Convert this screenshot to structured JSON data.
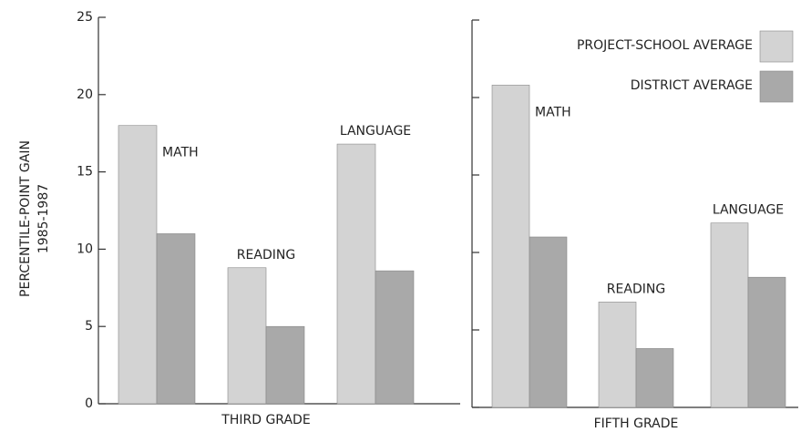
{
  "chart_data": [
    {
      "type": "bar",
      "y_label": [
        "PERCENTILE-POINT  GAIN",
        "1985-1987"
      ],
      "x_label": "THIRD GRADE",
      "categories": [
        "MATH",
        "READING",
        "LANGUAGE"
      ],
      "series": [
        {
          "color": "#d3d3d3",
          "values": [
            18,
            8.8,
            16.8
          ]
        },
        {
          "color": "#a9a9a9",
          "values": [
            11,
            5,
            8.6
          ]
        }
      ],
      "ylim": [
        0,
        25
      ],
      "yticks": [
        0,
        5,
        10,
        15,
        20,
        25
      ],
      "tick_labels": true
    },
    {
      "type": "bar",
      "x_label": "FIFTH GRADE",
      "categories": [
        "MATH",
        "READING",
        "LANGUAGE"
      ],
      "series": [
        {
          "name": "PROJECT-SCHOOL AVERAGE",
          "color": "#d3d3d3",
          "values": [
            20.8,
            6.8,
            11.9
          ]
        },
        {
          "name": "DISTRICT AVERAGE",
          "color": "#a9a9a9",
          "values": [
            11,
            3.8,
            8.4
          ]
        }
      ],
      "ylim": [
        0,
        25
      ],
      "yticks": [
        0,
        5,
        10,
        15,
        20,
        25
      ],
      "tick_labels": false,
      "legend": "top-right"
    }
  ]
}
